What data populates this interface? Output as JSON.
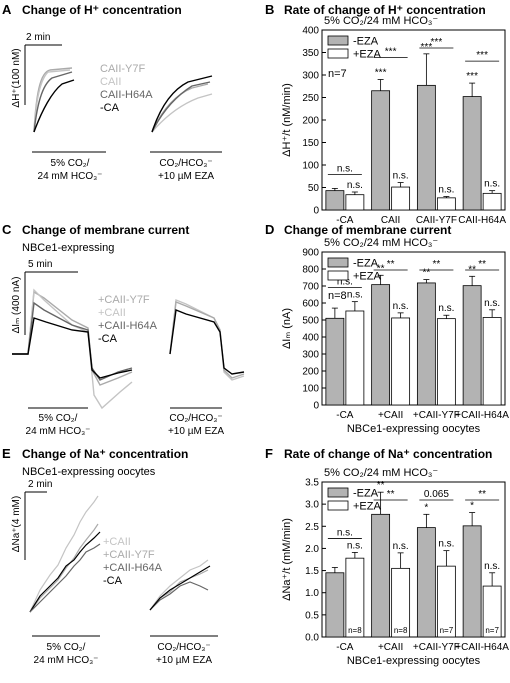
{
  "panels": {
    "A": {
      "letter": "A",
      "title": "Change of H⁺ concentration",
      "scale_time": "2 min",
      "scale_y": "ΔH⁺(100 nM)",
      "legend": [
        {
          "label": "CAII-Y7F",
          "color": "#aaaaaa"
        },
        {
          "label": "CAII",
          "color": "#c4c4c4"
        },
        {
          "label": "CAII-H64A",
          "color": "#666666"
        },
        {
          "label": "-CA",
          "color": "#000000"
        }
      ],
      "cond1": [
        "5% CO₂/",
        "24 mM HCO₃⁻"
      ],
      "cond2": [
        "CO₂/HCO₃⁻",
        "+10 µM EZA"
      ]
    },
    "C": {
      "letter": "C",
      "title": "Change of membrane current",
      "subtitle": "NBCe1-expressing",
      "scale_time": "5 min",
      "scale_y": "ΔIₘ (400 nA)",
      "legend": [
        {
          "label": "+CAII-Y7F",
          "color": "#aaaaaa"
        },
        {
          "label": "+CAII",
          "color": "#c4c4c4"
        },
        {
          "label": "+CAII-H64A",
          "color": "#666666"
        },
        {
          "label": "-CA",
          "color": "#000000"
        }
      ],
      "cond1": [
        "5% CO₂/",
        "24 mM HCO₃⁻"
      ],
      "cond2": [
        "CO₂/HCO₃⁻",
        "+10 µM EZA"
      ]
    },
    "E": {
      "letter": "E",
      "title": "Change of Na⁺ concentration",
      "subtitle": "NBCe1-expressing oocytes",
      "scale_time": "2 min",
      "scale_y": "ΔNa⁺(4 mM)",
      "legend": [
        {
          "label": "+CAII",
          "color": "#c4c4c4"
        },
        {
          "label": "+CAII-Y7F",
          "color": "#aaaaaa"
        },
        {
          "label": "+CAII-H64A",
          "color": "#666666"
        },
        {
          "label": "-CA",
          "color": "#000000"
        }
      ],
      "cond1": [
        "5% CO₂/",
        "24 mM HCO₃⁻"
      ],
      "cond2": [
        "CO₂/HCO₃⁻",
        "+10 µM EZA"
      ]
    }
  },
  "chart_data": [
    {
      "letter": "B",
      "type": "bar",
      "title": "Rate of change of H⁺ concentration",
      "subtitle": "5% CO₂/24 mM HCO₃⁻",
      "ylabel": "ΔH⁺/t (nM/min)",
      "xlabel": "",
      "ylim": [
        0,
        400
      ],
      "yticks": [
        0,
        50,
        100,
        150,
        200,
        250,
        300,
        350,
        400
      ],
      "categories": [
        "-CA",
        "CAII",
        "CAII-Y7F",
        "CAII-H64A"
      ],
      "legend": [
        "-EZA",
        "+EZA"
      ],
      "n_label": "n=7",
      "n_per_group": [],
      "series": [
        {
          "name": "-EZA",
          "color": "#b3b3b3",
          "values": [
            43,
            265,
            277,
            252
          ],
          "errors": [
            5,
            25,
            70,
            30
          ]
        },
        {
          "name": "+EZA",
          "color": "#ffffff",
          "values": [
            34,
            51,
            27,
            37
          ],
          "errors": [
            6,
            10,
            3,
            6
          ]
        }
      ],
      "stars_minus": [
        "",
        "***",
        "***",
        "***"
      ],
      "stars_plus": [
        "n.s.",
        "n.s.",
        "n.s.",
        "n.s."
      ],
      "brackets": [
        "n.s.",
        "***",
        "***",
        "***"
      ]
    },
    {
      "letter": "D",
      "type": "bar",
      "title": "Change of membrane current",
      "subtitle": "5% CO₂/24 mM HCO₃⁻",
      "ylabel": "ΔIₘ (nA)",
      "xlabel": "NBCe1-expressing oocytes",
      "ylim": [
        0,
        900
      ],
      "yticks": [
        0,
        100,
        200,
        300,
        400,
        500,
        600,
        700,
        800,
        900
      ],
      "categories": [
        "-CA",
        "+CAII",
        "+CAII-Y7F",
        "+CAII-H64A"
      ],
      "legend": [
        "-EZA",
        "+EZA"
      ],
      "n_label": "n=8",
      "n_per_group": [],
      "series": [
        {
          "name": "-EZA",
          "color": "#b3b3b3",
          "values": [
            510,
            708,
            718,
            702
          ],
          "errors": [
            60,
            55,
            20,
            55
          ]
        },
        {
          "name": "+EZA",
          "color": "#ffffff",
          "values": [
            553,
            512,
            508,
            515
          ],
          "errors": [
            55,
            30,
            20,
            45
          ]
        }
      ],
      "stars_minus": [
        "",
        "**",
        "**",
        "**"
      ],
      "stars_plus": [
        "n.s.",
        "n.s.",
        "n.s.",
        "n.s."
      ],
      "brackets": [
        "n.s.",
        "**",
        "**",
        "**"
      ]
    },
    {
      "letter": "F",
      "type": "bar",
      "title": "Rate of change of Na⁺ concentration",
      "subtitle": "5% CO₂/24 mM HCO₃⁻",
      "ylabel": "ΔNa⁺/t (mM/min)",
      "xlabel": "NBCe1-expressing oocytes",
      "ylim": [
        0,
        3.5
      ],
      "yticks": [
        0.0,
        0.5,
        1.0,
        1.5,
        2.0,
        2.5,
        3.0,
        3.5
      ],
      "categories": [
        "-CA",
        "+CAII",
        "+CAII-Y7F",
        "+CAII-H64A"
      ],
      "legend": [
        "-EZA",
        "+EZA"
      ],
      "n_label": "",
      "n_per_group": [
        "n=8",
        "n=8",
        "n=7",
        "n=7"
      ],
      "series": [
        {
          "name": "-EZA",
          "color": "#b3b3b3",
          "values": [
            1.45,
            2.77,
            2.47,
            2.51
          ],
          "errors": [
            0.12,
            0.5,
            0.3,
            0.3
          ]
        },
        {
          "name": "+EZA",
          "color": "#ffffff",
          "values": [
            1.78,
            1.55,
            1.6,
            1.15
          ],
          "errors": [
            0.13,
            0.35,
            0.35,
            0.3
          ]
        }
      ],
      "stars_minus": [
        "",
        "**",
        "*",
        "*"
      ],
      "stars_plus": [
        "n.s.",
        "n.s.",
        "n.s.",
        "n.s."
      ],
      "brackets": [
        "n.s.",
        "**",
        "0.065",
        "**"
      ]
    }
  ]
}
